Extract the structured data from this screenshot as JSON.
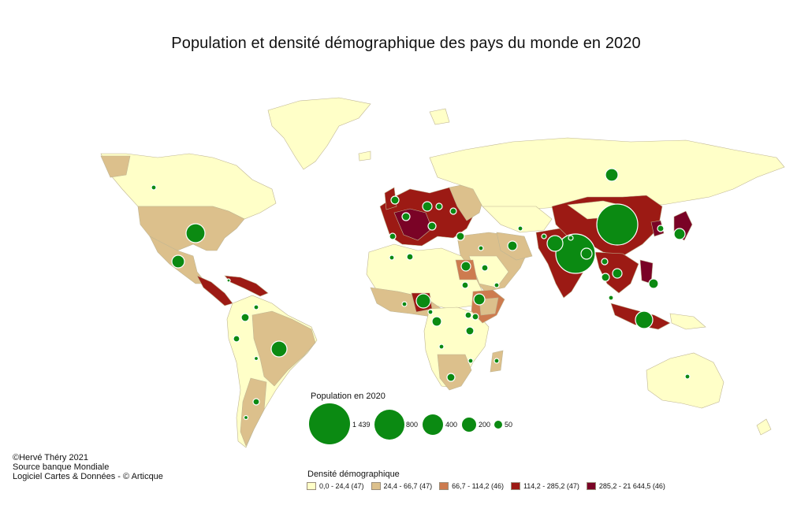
{
  "title": "Population et densité démographique des pays du monde en 2020",
  "credits": {
    "line1": "©Hervé Théry 2021",
    "line2": "Source banque Mondiale",
    "line3": "Logiciel  Cartes & Données - © Articque"
  },
  "population_legend": {
    "title": "Population en 2020",
    "items": [
      {
        "label": "1 439"
      },
      {
        "label": "800"
      },
      {
        "label": "400"
      },
      {
        "label": "200"
      },
      {
        "label": "50"
      }
    ]
  },
  "density_legend": {
    "title": "Densité démographique",
    "classes": [
      {
        "label": "0,0 - 24,4 (47)",
        "color": "#ffffc8"
      },
      {
        "label": "24,4 - 66,7 (47)",
        "color": "#dcc08c"
      },
      {
        "label": "66,7 - 114,2 (46)",
        "color": "#cd7b4f"
      },
      {
        "label": "114,2 - 285,2 (47)",
        "color": "#9c1a14"
      },
      {
        "label": "285,2 - 21 644,5 (46)",
        "color": "#7a0326"
      }
    ]
  },
  "colors": {
    "circle": "#0b8a12",
    "circle_stroke": "#ffffff",
    "land_border": "#bfb593"
  }
}
